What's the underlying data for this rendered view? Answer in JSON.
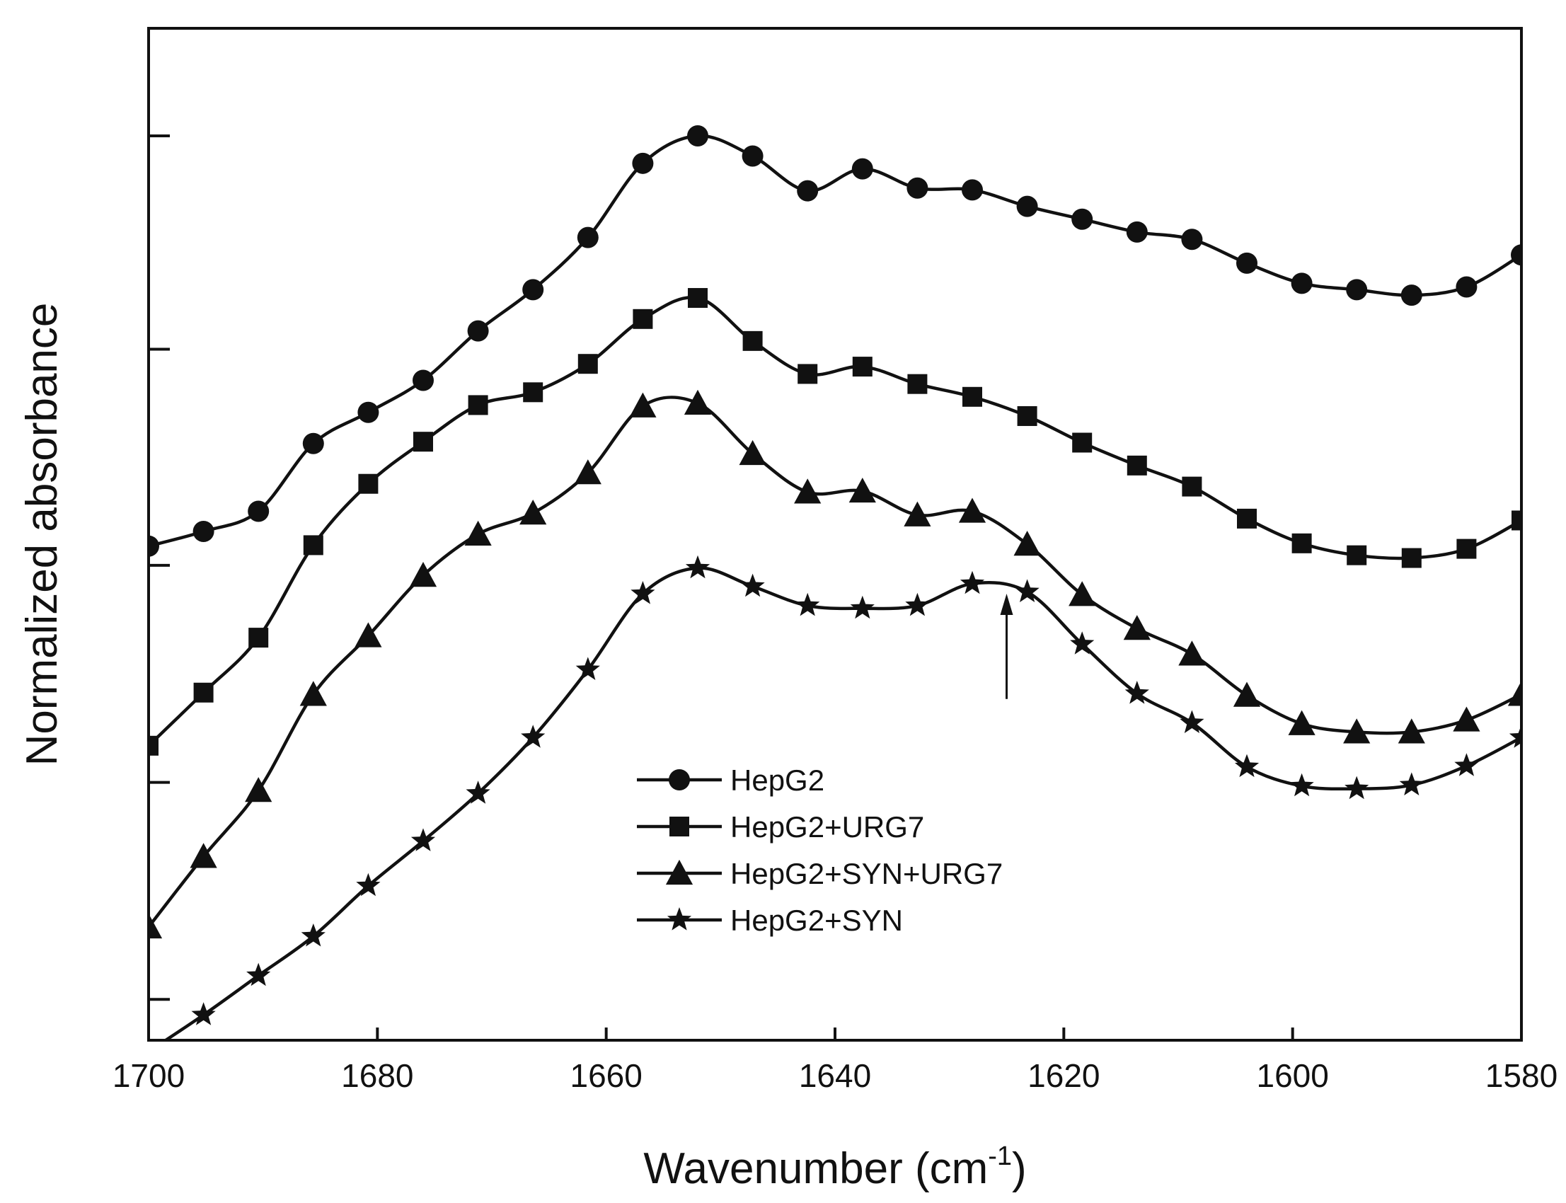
{
  "chart_data": {
    "type": "line",
    "title": "",
    "xlabel": "Wavenumber (cm",
    "xlabel_sup": "-1",
    "xlabel_tail": ")",
    "ylabel": "Normalized absorbance",
    "xlim": [
      1700,
      1580
    ],
    "ylim": [
      0,
      1
    ],
    "x_ticks": [
      1700,
      1680,
      1660,
      1640,
      1620,
      1600,
      1580
    ],
    "x_tick_labels": [
      "1700",
      "1680",
      "1660",
      "1640",
      "1620",
      "1600",
      "1580"
    ],
    "y_ticks": [
      0.057,
      0.294,
      0.531,
      0.767,
      1.0
    ],
    "grid": false,
    "legend_position": "bottom-center",
    "line_color": "#111111",
    "annotation": {
      "type": "arrow",
      "x": 1625,
      "y_from": 0.385,
      "y_to": 0.5
    },
    "series": [
      {
        "name": "HepG2",
        "marker": "circle",
        "x": [
          1700,
          1695.2,
          1690.4,
          1685.6,
          1680.8,
          1676,
          1671.2,
          1666.4,
          1661.6,
          1656.8,
          1652,
          1647.2,
          1642.4,
          1637.6,
          1632.8,
          1628,
          1623.2,
          1618.4,
          1613.6,
          1608.8,
          1604,
          1599.2,
          1594.4,
          1589.6,
          1584.8,
          1580
        ],
        "y": [
          0.552,
          0.568,
          0.59,
          0.664,
          0.698,
          0.733,
          0.787,
          0.832,
          0.889,
          0.97,
          1.0,
          0.978,
          0.94,
          0.964,
          0.943,
          0.941,
          0.923,
          0.909,
          0.895,
          0.887,
          0.861,
          0.839,
          0.832,
          0.826,
          0.835,
          0.87
        ]
      },
      {
        "name": "HepG2+URG7",
        "marker": "square",
        "x": [
          1700,
          1695.2,
          1690.4,
          1685.6,
          1680.8,
          1676,
          1671.2,
          1666.4,
          1661.6,
          1656.8,
          1652,
          1647.2,
          1642.4,
          1637.6,
          1632.8,
          1628,
          1623.2,
          1618.4,
          1613.6,
          1608.8,
          1604,
          1599.2,
          1594.4,
          1589.6,
          1584.8,
          1580
        ],
        "y": [
          0.334,
          0.392,
          0.452,
          0.553,
          0.62,
          0.666,
          0.706,
          0.72,
          0.751,
          0.8,
          0.823,
          0.776,
          0.74,
          0.748,
          0.729,
          0.715,
          0.694,
          0.665,
          0.64,
          0.617,
          0.582,
          0.555,
          0.542,
          0.539,
          0.549,
          0.58
        ]
      },
      {
        "name": "HepG2+SYN+URG7",
        "marker": "triangle",
        "x": [
          1700,
          1695.2,
          1690.4,
          1685.6,
          1680.8,
          1676,
          1671.2,
          1666.4,
          1661.6,
          1656.8,
          1652,
          1647.2,
          1642.4,
          1637.6,
          1632.8,
          1628,
          1623.2,
          1618.4,
          1613.6,
          1608.8,
          1604,
          1599.2,
          1594.4,
          1589.6,
          1584.8,
          1580
        ],
        "y": [
          0.136,
          0.213,
          0.285,
          0.39,
          0.454,
          0.52,
          0.565,
          0.588,
          0.632,
          0.705,
          0.708,
          0.653,
          0.611,
          0.612,
          0.586,
          0.59,
          0.554,
          0.499,
          0.462,
          0.434,
          0.389,
          0.358,
          0.349,
          0.349,
          0.362,
          0.39
        ]
      },
      {
        "name": "HepG2+SYN",
        "marker": "star",
        "x": [
          1700,
          1695.2,
          1690.4,
          1685.6,
          1680.8,
          1676,
          1671.2,
          1666.4,
          1661.6,
          1656.8,
          1652,
          1647.2,
          1642.4,
          1637.6,
          1632.8,
          1628,
          1623.2,
          1618.4,
          1613.6,
          1608.8,
          1604,
          1599.2,
          1594.4,
          1589.6,
          1584.8,
          1580
        ],
        "y": [
          0.0,
          0.04,
          0.083,
          0.126,
          0.181,
          0.23,
          0.282,
          0.343,
          0.417,
          0.5,
          0.528,
          0.508,
          0.487,
          0.484,
          0.487,
          0.511,
          0.502,
          0.445,
          0.391,
          0.359,
          0.311,
          0.29,
          0.287,
          0.291,
          0.312,
          0.343
        ]
      }
    ]
  }
}
